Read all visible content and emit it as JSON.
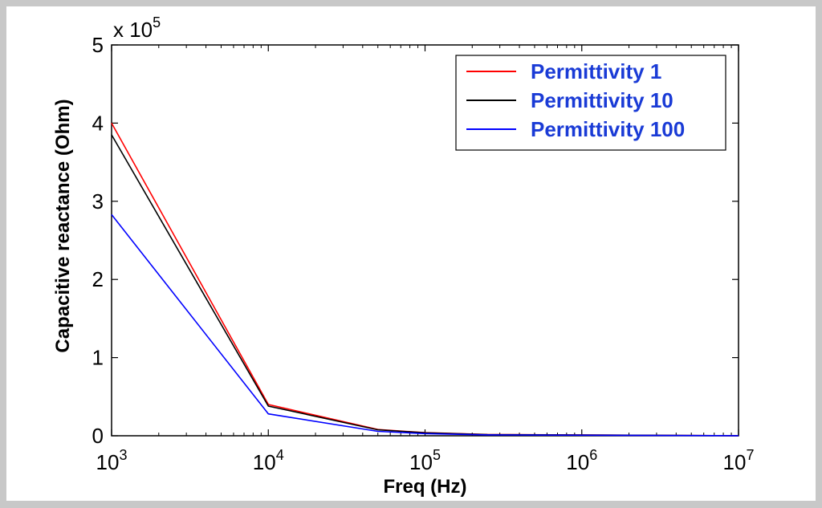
{
  "chart_data": {
    "type": "line",
    "xscale": "log",
    "xlabel": "Freq (Hz)",
    "ylabel": "Capacitive reactance (Ohm)",
    "xlim": [
      1000,
      10000000
    ],
    "ylim": [
      0,
      500000
    ],
    "y_multiplier_label": {
      "base": "x 10",
      "exp": "5"
    },
    "x_ticks": [
      {
        "value": 1000,
        "base": "10",
        "exp": "3"
      },
      {
        "value": 10000,
        "base": "10",
        "exp": "4"
      },
      {
        "value": 100000,
        "base": "10",
        "exp": "5"
      },
      {
        "value": 1000000,
        "base": "10",
        "exp": "6"
      },
      {
        "value": 10000000,
        "base": "10",
        "exp": "7"
      }
    ],
    "y_ticks": [
      {
        "value": 0,
        "label": "0"
      },
      {
        "value": 100000,
        "label": "1"
      },
      {
        "value": 200000,
        "label": "2"
      },
      {
        "value": 300000,
        "label": "3"
      },
      {
        "value": 400000,
        "label": "4"
      },
      {
        "value": 500000,
        "label": "5"
      }
    ],
    "grid": false,
    "legend_position": "top-right",
    "series": [
      {
        "name": "Permittivity 1",
        "color": "#ff0000",
        "x": [
          1000,
          10000,
          50000,
          100000,
          250000,
          10000000
        ],
        "y": [
          400000,
          40000,
          8000,
          4000,
          1600,
          100
        ]
      },
      {
        "name": "Permittivity 10",
        "color": "#000000",
        "x": [
          1000,
          10000,
          50000,
          100000,
          250000,
          10000000
        ],
        "y": [
          385000,
          38000,
          7600,
          3800,
          1500,
          100
        ]
      },
      {
        "name": "Permittivity 100",
        "color": "#0000ff",
        "x": [
          1000,
          10000,
          50000,
          100000,
          250000,
          10000000
        ],
        "y": [
          283000,
          28000,
          5600,
          2800,
          1100,
          100
        ]
      }
    ]
  }
}
